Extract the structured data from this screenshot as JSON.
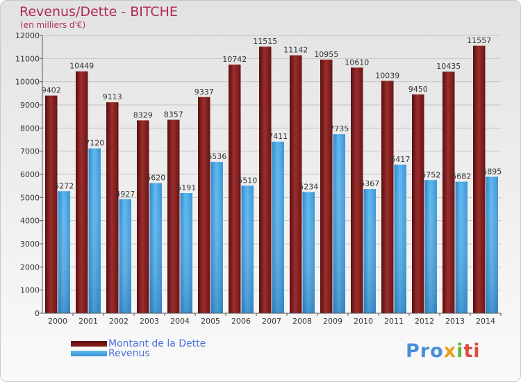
{
  "chart_data": {
    "type": "bar",
    "title": "Revenus/Dette - BITCHE",
    "subtitle": "(en milliers d'€)",
    "categories": [
      "2000",
      "2001",
      "2002",
      "2003",
      "2004",
      "2005",
      "2006",
      "2007",
      "2008",
      "2009",
      "2010",
      "2011",
      "2012",
      "2013",
      "2014"
    ],
    "series": [
      {
        "name": "Montant de la Dette",
        "color": "#8b1c1c",
        "values": [
          9402,
          10449,
          9113,
          8329,
          8357,
          9337,
          10742,
          11515,
          11142,
          10955,
          10610,
          10039,
          9450,
          10435,
          11557
        ]
      },
      {
        "name": "Revenus",
        "color": "#4aa8e8",
        "values": [
          5272,
          7120,
          4927,
          5620,
          5191,
          6536,
          5510,
          7411,
          5234,
          7735,
          5367,
          6417,
          5752,
          5682,
          5895
        ]
      }
    ],
    "ylim": [
      0,
      12000
    ],
    "yticks": [
      0,
      1000,
      2000,
      3000,
      4000,
      5000,
      6000,
      7000,
      8000,
      9000,
      10000,
      11000,
      12000
    ],
    "grid": true,
    "legend_position": "bottom-left"
  },
  "logo": {
    "p1": "Pro",
    "p2": "x",
    "p3": "i",
    "p4": "ti"
  }
}
